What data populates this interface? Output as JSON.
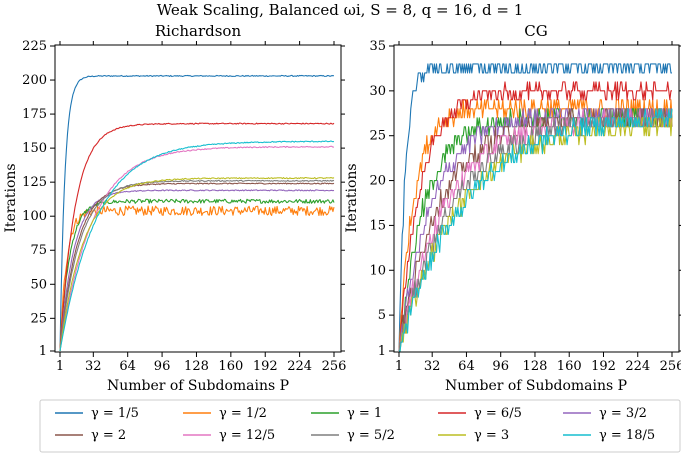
{
  "figure": {
    "suptitle": "Weak Scaling, Balanced ωi, S = 8, q = 16, d = 1"
  },
  "legend": {
    "entries": [
      {
        "label": "γ = 1/5",
        "color": "#1f77b4"
      },
      {
        "label": "γ = 1/2",
        "color": "#ff7f0e"
      },
      {
        "label": "γ = 1",
        "color": "#2ca02c"
      },
      {
        "label": "γ = 6/5",
        "color": "#d62728"
      },
      {
        "label": "γ = 3/2",
        "color": "#9467bd"
      },
      {
        "label": "γ = 2",
        "color": "#8c564b"
      },
      {
        "label": "γ = 12/5",
        "color": "#e377c2"
      },
      {
        "label": "γ = 5/2",
        "color": "#7f7f7f"
      },
      {
        "label": "γ = 3",
        "color": "#bcbd22"
      },
      {
        "label": "γ = 18/5",
        "color": "#17becf"
      }
    ]
  },
  "chart_data": [
    {
      "type": "line",
      "title": "Richardson",
      "xlabel": "Number of Subdomains P",
      "ylabel": "Iterations",
      "xlim": [
        1,
        256
      ],
      "ylim": [
        1,
        225
      ],
      "xticks": [
        1,
        32,
        64,
        96,
        128,
        160,
        192,
        224,
        256
      ],
      "yticks": [
        1,
        25,
        50,
        75,
        100,
        125,
        150,
        175,
        200,
        225
      ],
      "x_range": [
        1,
        256
      ],
      "series": [
        {
          "name": "γ = 1/5",
          "color": "#1f77b4",
          "plateau": 203,
          "tau": 4.5,
          "noise": 0.4
        },
        {
          "name": "γ = 1/2",
          "color": "#ff7f0e",
          "plateau": 104,
          "tau": 6,
          "noise": 3.5
        },
        {
          "name": "γ = 1",
          "color": "#2ca02c",
          "plateau": 111,
          "tau": 9,
          "noise": 1.5
        },
        {
          "name": "γ = 6/5",
          "color": "#d62728",
          "plateau": 168,
          "tau": 14,
          "noise": 0.4
        },
        {
          "name": "γ = 3/2",
          "color": "#9467bd",
          "plateau": 119,
          "tau": 13,
          "noise": 0.4
        },
        {
          "name": "γ = 2",
          "color": "#8c564b",
          "plateau": 124,
          "tau": 16,
          "noise": 0.4
        },
        {
          "name": "γ = 12/5",
          "color": "#e377c2",
          "plateau": 151,
          "tau": 30,
          "noise": 0.4
        },
        {
          "name": "γ = 5/2",
          "color": "#7f7f7f",
          "plateau": 126,
          "tau": 18,
          "noise": 0.4
        },
        {
          "name": "γ = 3",
          "color": "#bcbd22",
          "plateau": 128,
          "tau": 22,
          "noise": 0.4
        },
        {
          "name": "γ = 18/5",
          "color": "#17becf",
          "plateau": 155,
          "tau": 34,
          "noise": 0.4
        }
      ]
    },
    {
      "type": "line",
      "title": "CG",
      "xlabel": "Number of Subdomains P",
      "ylabel": "Iterations",
      "xlim": [
        1,
        256
      ],
      "ylim": [
        1,
        35
      ],
      "xticks": [
        1,
        32,
        64,
        96,
        128,
        160,
        192,
        224,
        256
      ],
      "yticks": [
        1,
        5,
        10,
        15,
        20,
        25,
        30,
        35
      ],
      "x_range": [
        1,
        256
      ],
      "series": [
        {
          "name": "γ = 1/5",
          "color": "#1f77b4",
          "plateau": 32.5,
          "tau": 6,
          "noise": 0.6
        },
        {
          "name": "γ = 1/2",
          "color": "#ff7f0e",
          "plateau": 28,
          "tau": 14,
          "noise": 0.7
        },
        {
          "name": "γ = 1",
          "color": "#2ca02c",
          "plateau": 27,
          "tau": 24,
          "noise": 0.7
        },
        {
          "name": "γ = 6/5",
          "color": "#d62728",
          "plateau": 30,
          "tau": 20,
          "noise": 0.5
        },
        {
          "name": "γ = 3/2",
          "color": "#9467bd",
          "plateau": 27.5,
          "tau": 32,
          "noise": 0.7
        },
        {
          "name": "γ = 2",
          "color": "#8c564b",
          "plateau": 27,
          "tau": 38,
          "noise": 0.7
        },
        {
          "name": "γ = 12/5",
          "color": "#e377c2",
          "plateau": 27,
          "tau": 44,
          "noise": 0.7
        },
        {
          "name": "γ = 5/2",
          "color": "#7f7f7f",
          "plateau": 27,
          "tau": 50,
          "noise": 0.7
        },
        {
          "name": "γ = 3",
          "color": "#bcbd22",
          "plateau": 26.5,
          "tau": 56,
          "noise": 0.7
        },
        {
          "name": "γ = 18/5",
          "color": "#17becf",
          "plateau": 27.5,
          "tau": 62,
          "noise": 0.7
        }
      ]
    }
  ]
}
